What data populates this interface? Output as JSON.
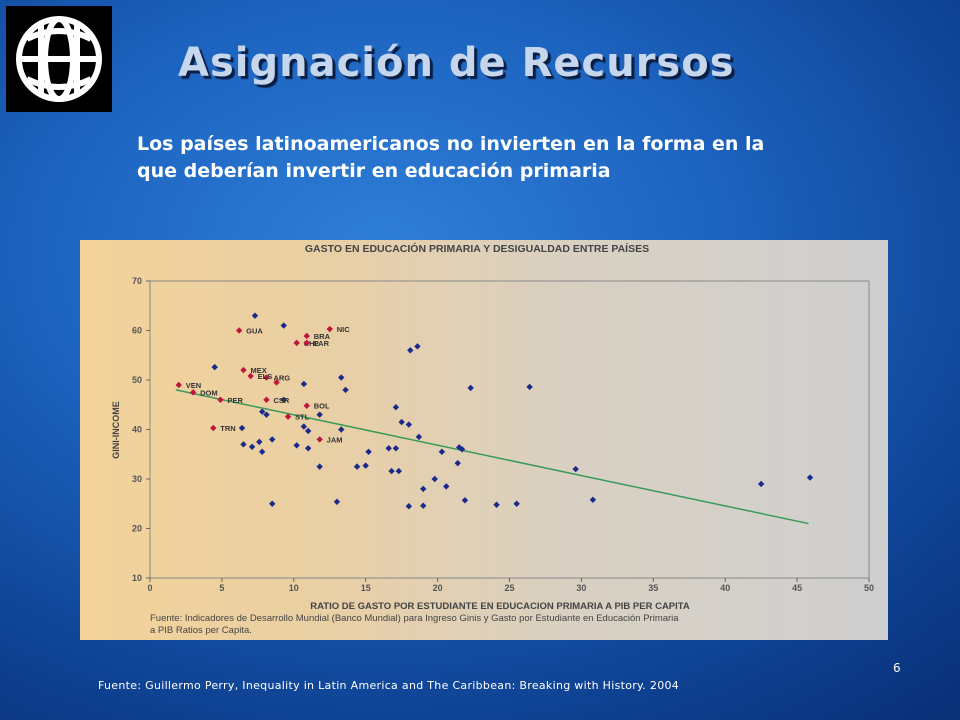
{
  "slide": {
    "title": "Asignación de Recursos",
    "subtitle_line1": "Los países latinoamericanos no invierten en la forma en la",
    "subtitle_line2": "que deberían invertir en educación primaria",
    "page_number": "6",
    "footer": "Fuente:  Guillermo Perry, Inequality in Latin America and The Caribbean:  Breaking with History. 2004",
    "logo_icon": "world-bank-globe-icon"
  },
  "chart_data": {
    "type": "scatter",
    "title": "GASTO EN EDUCACIÓN PRIMARIA  Y DESIGUALDAD ENTRE PAÍSES",
    "xlabel": "RATIO DE GASTO POR ESTUDIANTE EN EDUCACION PRIMARIA A PIB PER CAPITA",
    "ylabel": "GINI-INCOME",
    "source_line1": "Fuente: Indicadores de Desarrollo Mundial (Banco Mundial) para Ingreso Ginis y Gasto por Estudiante en Educación Primaria",
    "source_line2": "a PIB Ratios per Capita.",
    "xlim": [
      0,
      50
    ],
    "ylim": [
      10,
      70
    ],
    "xticks": [
      0,
      5,
      10,
      15,
      20,
      25,
      30,
      35,
      40,
      45,
      50
    ],
    "yticks": [
      10,
      20,
      30,
      40,
      50,
      60,
      70
    ],
    "grid": false,
    "colors": {
      "other": "#1a2a8c",
      "latin": "#c0143c",
      "trend": "#3a9a5a"
    },
    "latin_america_points": [
      {
        "label": "NIC",
        "x": 12.5,
        "y": 60.3
      },
      {
        "label": "GUA",
        "x": 6.2,
        "y": 60.0
      },
      {
        "label": "BRA",
        "x": 10.9,
        "y": 58.9
      },
      {
        "label": "CHL",
        "x": 10.2,
        "y": 57.5
      },
      {
        "label": "PAR",
        "x": 10.9,
        "y": 57.5
      },
      {
        "label": "MEX",
        "x": 6.5,
        "y": 52.0
      },
      {
        "label": "ARG",
        "x": 8.1,
        "y": 50.5
      },
      {
        "label": "ELS",
        "x": 7.0,
        "y": 50.8
      },
      {
        "label": "",
        "x": 8.8,
        "y": 49.5
      },
      {
        "label": "VEN",
        "x": 2.0,
        "y": 49.0
      },
      {
        "label": "DOM",
        "x": 3.0,
        "y": 47.5
      },
      {
        "label": "CSR",
        "x": 8.1,
        "y": 46.0
      },
      {
        "label": "PER",
        "x": 4.9,
        "y": 46.0
      },
      {
        "label": "BOL",
        "x": 10.9,
        "y": 44.8
      },
      {
        "label": "STL",
        "x": 9.6,
        "y": 42.6
      },
      {
        "label": "TRN",
        "x": 4.4,
        "y": 40.3
      },
      {
        "label": "JAM",
        "x": 11.8,
        "y": 38.0
      }
    ],
    "other_points": [
      [
        7.3,
        63.0
      ],
      [
        9.3,
        61.0
      ],
      [
        18.6,
        56.8
      ],
      [
        18.1,
        56.0
      ],
      [
        4.5,
        52.6
      ],
      [
        13.3,
        50.5
      ],
      [
        26.4,
        48.6
      ],
      [
        22.3,
        48.4
      ],
      [
        10.7,
        49.2
      ],
      [
        13.6,
        48.0
      ],
      [
        9.3,
        46.0
      ],
      [
        7.8,
        43.6
      ],
      [
        8.1,
        43.0
      ],
      [
        11.8,
        43.0
      ],
      [
        17.1,
        44.5
      ],
      [
        17.5,
        41.5
      ],
      [
        18.0,
        41.0
      ],
      [
        13.3,
        40.0
      ],
      [
        10.7,
        40.6
      ],
      [
        11.0,
        39.7
      ],
      [
        6.4,
        40.3
      ],
      [
        18.7,
        38.5
      ],
      [
        7.6,
        37.5
      ],
      [
        6.5,
        37.0
      ],
      [
        7.1,
        36.5
      ],
      [
        8.5,
        38.0
      ],
      [
        10.2,
        36.8
      ],
      [
        11.0,
        36.2
      ],
      [
        7.8,
        35.5
      ],
      [
        15.2,
        35.5
      ],
      [
        16.6,
        36.2
      ],
      [
        17.1,
        36.2
      ],
      [
        20.3,
        35.5
      ],
      [
        21.5,
        36.4
      ],
      [
        21.7,
        36.0
      ],
      [
        11.8,
        32.5
      ],
      [
        14.4,
        32.5
      ],
      [
        15.0,
        32.7
      ],
      [
        16.8,
        31.6
      ],
      [
        17.3,
        31.6
      ],
      [
        21.4,
        33.2
      ],
      [
        29.6,
        32.0
      ],
      [
        19.8,
        30.0
      ],
      [
        20.6,
        28.5
      ],
      [
        19.0,
        28.0
      ],
      [
        8.5,
        25.0
      ],
      [
        13.0,
        25.4
      ],
      [
        18.0,
        24.5
      ],
      [
        19.0,
        24.6
      ],
      [
        21.9,
        25.7
      ],
      [
        24.1,
        24.8
      ],
      [
        25.5,
        25.0
      ],
      [
        30.8,
        25.8
      ],
      [
        42.5,
        29.0
      ],
      [
        45.9,
        30.3
      ]
    ],
    "trendline": {
      "x": [
        1.8,
        45.8
      ],
      "y": [
        48.0,
        21.0
      ]
    }
  }
}
